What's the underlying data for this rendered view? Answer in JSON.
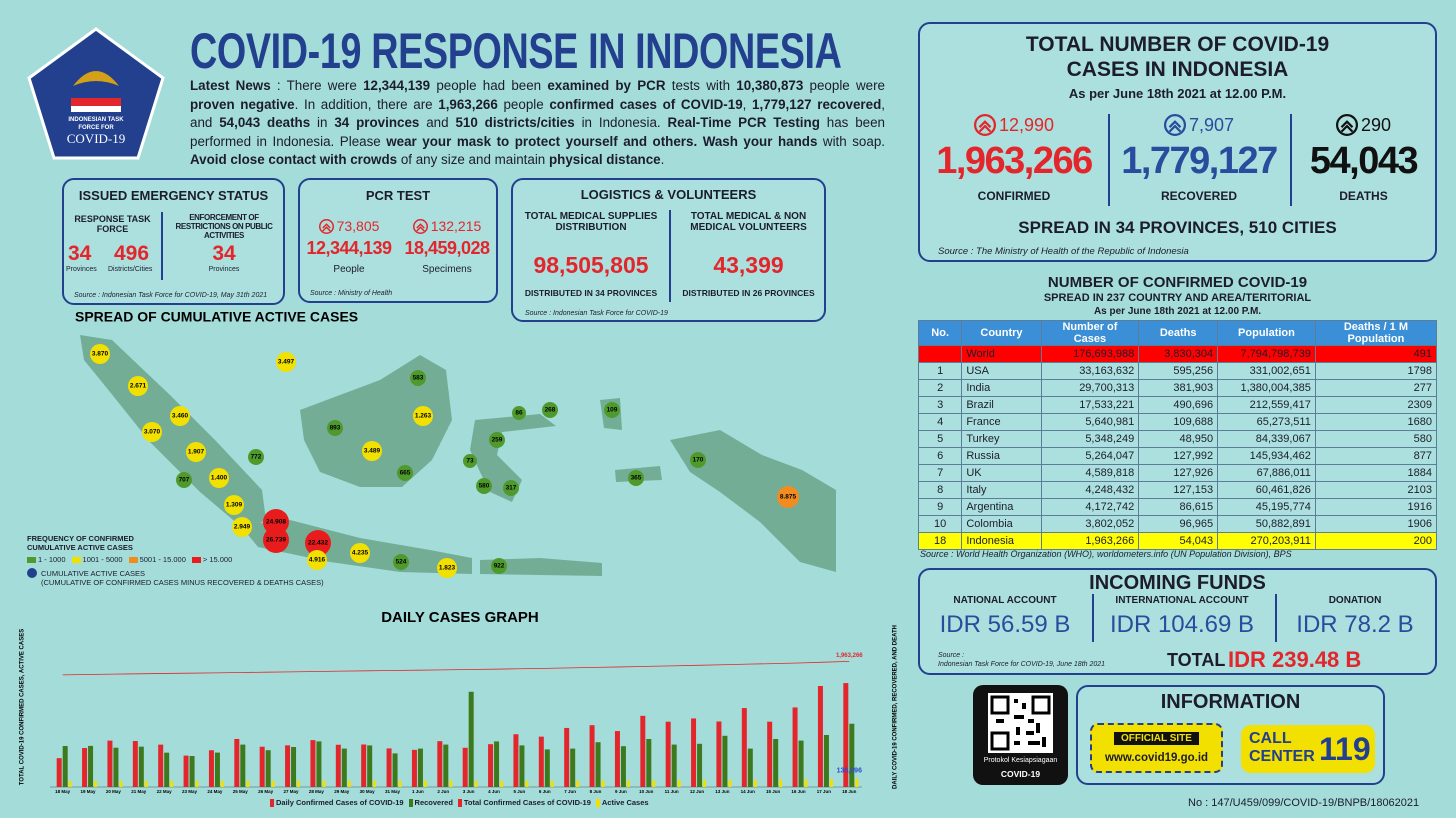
{
  "header": {
    "logo": [
      "INDONESIAN TASK",
      "FORCE FOR",
      "COVID-19"
    ],
    "title": "COVID-19 RESPONSE IN INDONESIA",
    "news": [
      {
        "text": "Latest News",
        "bold": true
      },
      {
        "text": " : There were ",
        "bold": false
      },
      {
        "text": "12,344,139",
        "bold": true
      },
      {
        "text": " people had been ",
        "bold": false
      },
      {
        "text": "examined by PCR",
        "bold": true
      },
      {
        "text": " tests with ",
        "bold": false
      },
      {
        "text": "10,380,873",
        "bold": true
      },
      {
        "text": " people were ",
        "bold": false
      },
      {
        "text": "proven negative",
        "bold": true
      },
      {
        "text": ". In addition, there are ",
        "bold": false
      },
      {
        "text": "1,963,266",
        "bold": true
      },
      {
        "text": " people ",
        "bold": false
      },
      {
        "text": "confirmed cases of COVID-19",
        "bold": true
      },
      {
        "text": ", ",
        "bold": false
      },
      {
        "text": "1,779,127 recovered",
        "bold": true
      },
      {
        "text": ", and ",
        "bold": false
      },
      {
        "text": "54,043 deaths",
        "bold": true
      },
      {
        "text": " in ",
        "bold": false
      },
      {
        "text": "34 provinces",
        "bold": true
      },
      {
        "text": " and ",
        "bold": false
      },
      {
        "text": "510 districts/cities",
        "bold": true
      },
      {
        "text": " in Indonesia. ",
        "bold": false
      },
      {
        "text": "Real-Time PCR Testing",
        "bold": true
      },
      {
        "text": " has been performed in Indonesia. Please ",
        "bold": false
      },
      {
        "text": "wear your mask to protect yourself and others. Wash your hands",
        "bold": true
      },
      {
        "text": " with soap. ",
        "bold": false
      },
      {
        "text": "Avoid close contact with crowds",
        "bold": true
      },
      {
        "text": " of any size and maintain ",
        "bold": false
      },
      {
        "text": "physical distance",
        "bold": true
      },
      {
        "text": ".",
        "bold": false
      }
    ]
  },
  "emergency": {
    "title": "ISSUED EMERGENCY STATUS",
    "task_force": {
      "heading": "RESPONSE TASK FORCE",
      "items": [
        {
          "value": "34",
          "unit": "Provinces"
        },
        {
          "value": "496",
          "unit": "Districts/Cities"
        }
      ]
    },
    "restrictions": {
      "heading": "ENFORCEMENT OF RESTRICTIONS ON PUBLIC ACTIVITIES",
      "value": "34",
      "unit": "Provinces"
    },
    "source": "Source : Indonesian Task Force for COVID-19, May 31th 2021"
  },
  "pcr": {
    "title": "PCR TEST",
    "items": [
      {
        "increase": "73,805",
        "value": "12,344,139",
        "label": "People"
      },
      {
        "increase": "132,215",
        "value": "18,459,028",
        "label": "Specimens"
      }
    ],
    "source": "Source : Ministry of Health"
  },
  "logistics": {
    "title": "LOGISTICS & VOLUNTEERS",
    "items": [
      {
        "heading": "TOTAL MEDICAL SUPPLIES DISTRIBUTION",
        "value": "98,505,805",
        "note": "DISTRIBUTED IN 34 PROVINCES"
      },
      {
        "heading": "TOTAL MEDICAL & NON MEDICAL VOLUNTEERS",
        "value": "43,399",
        "note": "DISTRIBUTED IN 26 PROVINCES"
      }
    ],
    "source": "Source : Indonesian Task Force for COVID-19"
  },
  "map": {
    "title": "SPREAD OF CUMULATIVE ACTIVE CASES",
    "markers": [
      {
        "label": "3.870",
        "color": "#f2e000"
      },
      {
        "label": "2.671",
        "color": "#f2e000"
      },
      {
        "label": "3.460",
        "color": "#f2e000"
      },
      {
        "label": "3.070",
        "color": "#f2e000"
      },
      {
        "label": "1.907",
        "color": "#f2e000"
      },
      {
        "label": "772",
        "color": "#4f9a2c"
      },
      {
        "label": "707",
        "color": "#4f9a2c"
      },
      {
        "label": "1.400",
        "color": "#f2e000"
      },
      {
        "label": "1.309",
        "color": "#f2e000"
      },
      {
        "label": "2.949",
        "color": "#f2e000"
      },
      {
        "label": "24.908",
        "color": "#e81c1c"
      },
      {
        "label": "26.739",
        "color": "#e81c1c"
      },
      {
        "label": "22.432",
        "color": "#e81c1c"
      },
      {
        "label": "4.916",
        "color": "#f2e000"
      },
      {
        "label": "4.235",
        "color": "#f2e000"
      },
      {
        "label": "524",
        "color": "#4f9a2c"
      },
      {
        "label": "1.823",
        "color": "#f2e000"
      },
      {
        "label": "922",
        "color": "#4f9a2c"
      },
      {
        "label": "3.497",
        "color": "#f2e000"
      },
      {
        "label": "583",
        "color": "#4f9a2c"
      },
      {
        "label": "893",
        "color": "#4f9a2c"
      },
      {
        "label": "1.263",
        "color": "#f2e000"
      },
      {
        "label": "3.489",
        "color": "#f2e000"
      },
      {
        "label": "665",
        "color": "#4f9a2c"
      },
      {
        "label": "86",
        "color": "#4f9a2c"
      },
      {
        "label": "268",
        "color": "#4f9a2c"
      },
      {
        "label": "259",
        "color": "#4f9a2c"
      },
      {
        "label": "73",
        "color": "#4f9a2c"
      },
      {
        "label": "580",
        "color": "#4f9a2c"
      },
      {
        "label": "317",
        "color": "#4f9a2c"
      },
      {
        "label": "109",
        "color": "#4f9a2c"
      },
      {
        "label": "365",
        "color": "#4f9a2c"
      },
      {
        "label": "170",
        "color": "#4f9a2c"
      },
      {
        "label": "8.875",
        "color": "#f28c1e"
      }
    ],
    "legend": {
      "title": [
        "FREQUENCY OF CONFIRMED",
        "CUMULATIVE ACTIVE CASES"
      ],
      "items": [
        {
          "label": "1 - 1000",
          "color": "#4f9a2c"
        },
        {
          "label": "1001 - 5000",
          "color": "#f2e000"
        },
        {
          "label": "5001 - 15.000",
          "color": "#f28c1e"
        },
        {
          "label": "> 15.000",
          "color": "#e81c1c"
        }
      ],
      "note": "CUMULATIVE ACTIVE CASES",
      "note_detail": "(CUMULATIVE OF CONFIRMED CASES MINUS RECOVERED & DEATHS CASES)"
    }
  },
  "chart_data": {
    "type": "bar",
    "title": "DAILY CASES GRAPH",
    "y_label": "TOTAL COVID-19 CONFIRMED CASES, ACTIVE CASES",
    "y2_label": "DAILY COVID-19 CONFIRMED, RECOVERED, AND DEATH",
    "categories": [
      "18 May",
      "19 May",
      "20 May",
      "21 May",
      "22 May",
      "23 May",
      "24 May",
      "25 May",
      "26 May",
      "27 May",
      "28 May",
      "29 May",
      "30 May",
      "31 May",
      "1 Jun",
      "2 Jun",
      "3 Jun",
      "4 Jun",
      "5 Jun",
      "6 Jun",
      "7 Jun",
      "8 Jun",
      "9 Jun",
      "10 Jun",
      "11 Jun",
      "12 Jun",
      "13 Jun",
      "14 Jun",
      "15 Jun",
      "16 Jun",
      "17 Jun",
      "18 Jun"
    ],
    "ylim": [
      0,
      2500000
    ],
    "y2lim": [
      0,
      20000
    ],
    "series": [
      {
        "name": "Daily Confirmed Cases of COVID-19",
        "type": "bar",
        "axis": "y2",
        "color": "#e3262b",
        "values": [
          3606,
          4871,
          5797,
          5746,
          5296,
          3922,
          4593,
          6007,
          5034,
          5205,
          5862,
          5280,
          5311,
          4824,
          4642,
          5727,
          4900,
          5353,
          6594,
          6294,
          7380,
          7725,
          6993,
          8892,
          8161,
          8569,
          8189,
          9868,
          8161,
          9944,
          12624,
          12990
        ]
      },
      {
        "name": "Recovered",
        "type": "bar",
        "axis": "y2",
        "color": "#3d7a1e",
        "values": [
          5125,
          5139,
          4911,
          5040,
          4290,
          3870,
          4300,
          5300,
          4600,
          5000,
          5700,
          4800,
          5200,
          4200,
          4800,
          5300,
          11903,
          5700,
          5200,
          4700,
          4800,
          5600,
          5100,
          6000,
          5300,
          5400,
          6400,
          4800,
          6000,
          5800,
          6500,
          7907
        ]
      },
      {
        "name": "Total Confirmed Cases of COVID-19",
        "type": "line",
        "color": "#e3262b",
        "values": [
          1752512,
          1757383,
          1763180,
          1768926,
          1774222,
          1778144,
          1782737,
          1788744,
          1793778,
          1798983,
          1804845,
          1810125,
          1815436,
          1820260,
          1824902,
          1830629,
          1835529,
          1840882,
          1847476,
          1853770,
          1861150,
          1868875,
          1875868,
          1884760,
          1892921,
          1901490,
          1909679,
          1919547,
          1927708,
          1937652,
          1950276,
          1963266
        ],
        "value_labels": [
          null,
          null,
          null,
          null,
          null,
          null,
          null,
          null,
          null,
          null,
          null,
          null,
          null,
          null,
          null,
          null,
          null,
          null,
          null,
          null,
          null,
          null,
          null,
          null,
          null,
          null,
          null,
          null,
          null,
          null,
          null,
          "1,963,266"
        ]
      },
      {
        "name": "Active Cases",
        "type": "bar",
        "color": "#f2e000",
        "values": [
          90101,
          91000,
          92147,
          93211,
          94020,
          94580,
          95000,
          95200,
          96100,
          96500,
          96800,
          97500,
          98000,
          98600,
          99500,
          100300,
          93600,
          94200,
          95400,
          97000,
          99400,
          101100,
          102000,
          104300,
          106300,
          108500,
          110000,
          113000,
          115300,
          118800,
          124300,
          130096
        ],
        "value_labels": [
          null,
          null,
          null,
          null,
          null,
          null,
          null,
          null,
          null,
          null,
          null,
          null,
          null,
          null,
          null,
          null,
          null,
          null,
          null,
          null,
          null,
          null,
          null,
          null,
          null,
          null,
          null,
          null,
          null,
          null,
          null,
          "130,096"
        ]
      }
    ]
  },
  "totals": {
    "title": [
      "TOTAL NUMBER OF COVID-19",
      "CASES IN INDONESIA"
    ],
    "subtitle": "As per June 18th 2021 at 12.00 P.M.",
    "stats": [
      {
        "increase": "12,990",
        "value": "1,963,266",
        "label": "CONFIRMED",
        "color": "#e3262b"
      },
      {
        "increase": "7,907",
        "value": "1,779,127",
        "label": "RECOVERED",
        "color": "#2a4c9c"
      },
      {
        "increase": "290",
        "value": "54,043",
        "label": "DEATHS",
        "color": "#111111"
      }
    ],
    "spread": "SPREAD IN 34 PROVINCES, 510 CITIES",
    "source": "Source : The Ministry of Health of the Republic of Indonesia"
  },
  "world_table": {
    "title": "NUMBER OF CONFIRMED COVID-19",
    "subtitle": "SPREAD IN 237 COUNTRY AND AREA/TERITORIAL",
    "date": "As per June 18th 2021 at 12.00 P.M.",
    "header": [
      "No.",
      "Country",
      "Number of Cases",
      "Deaths",
      "Population",
      "Deaths / 1 M Population"
    ],
    "rows": [
      {
        "cells": [
          null,
          "World",
          "176,693,988",
          "3,830,304",
          "7,794,798,739",
          "491"
        ],
        "color": "#ff0000"
      },
      {
        "cells": [
          "1",
          "USA",
          "33,163,632",
          "595,256",
          "331,002,651",
          "1798"
        ]
      },
      {
        "cells": [
          "2",
          "India",
          "29,700,313",
          "381,903",
          "1,380,004,385",
          "277"
        ]
      },
      {
        "cells": [
          "3",
          "Brazil",
          "17,533,221",
          "490,696",
          "212,559,417",
          "2309"
        ]
      },
      {
        "cells": [
          "4",
          "France",
          "5,640,981",
          "109,688",
          "65,273,511",
          "1680"
        ]
      },
      {
        "cells": [
          "5",
          "Turkey",
          "5,348,249",
          "48,950",
          "84,339,067",
          "580"
        ]
      },
      {
        "cells": [
          "6",
          "Russia",
          "5,264,047",
          "127,992",
          "145,934,462",
          "877"
        ]
      },
      {
        "cells": [
          "7",
          "UK",
          "4,589,818",
          "127,926",
          "67,886,011",
          "1884"
        ]
      },
      {
        "cells": [
          "8",
          "Italy",
          "4,248,432",
          "127,153",
          "60,461,826",
          "2103"
        ]
      },
      {
        "cells": [
          "9",
          "Argentina",
          "4,172,742",
          "86,615",
          "45,195,774",
          "1916"
        ]
      },
      {
        "cells": [
          "10",
          "Colombia",
          "3,802,052",
          "96,965",
          "50,882,891",
          "1906"
        ]
      },
      {
        "cells": [
          "18",
          "Indonesia",
          "1,963,266",
          "54,043",
          "270,203,911",
          "200"
        ],
        "color": "#ffff00"
      }
    ],
    "source": "Source : World Health Organization (WHO), worldometers.info (UN Population Division), BPS"
  },
  "funds": {
    "title": "INCOMING FUNDS",
    "accounts": [
      {
        "label": "NATIONAL ACCOUNT",
        "value": "IDR 56.59 B"
      },
      {
        "label": "INTERNATIONAL ACCOUNT",
        "value": "IDR 104.69 B"
      },
      {
        "label": "DONATION",
        "value": "IDR 78.2 B"
      }
    ],
    "source": [
      "Source :",
      "Indonesian Task Force for COVID-19, June 18th 2021"
    ],
    "total_label": "TOTAL",
    "total_value": "IDR 239.48 B"
  },
  "qr": {
    "caption": "Protokol Kesiapsiagaan",
    "title": "COVID-19"
  },
  "information": {
    "title": "INFORMATION",
    "site_label": "OFFICIAL SITE",
    "site_url": "www.covid19.go.id",
    "call": [
      "CALL",
      "CENTER"
    ],
    "call_number": "119"
  },
  "footer": "No : 147/U459/099/COVID-19/BNPB/18062021"
}
